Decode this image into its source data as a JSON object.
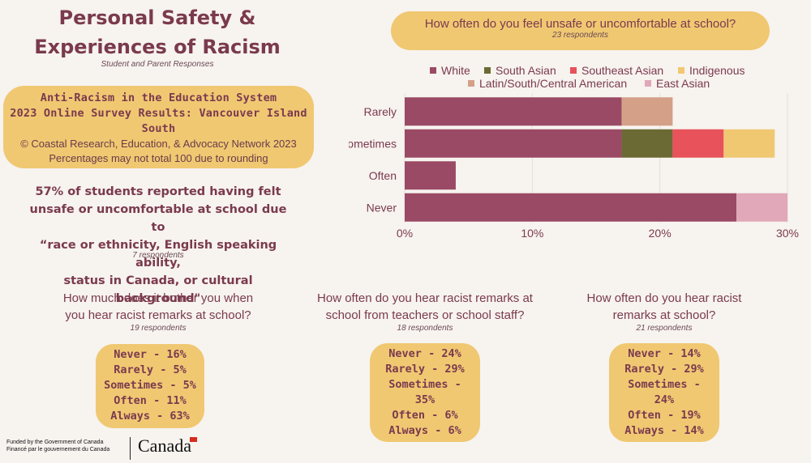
{
  "header": {
    "title_line1": "Personal Safety &",
    "title_line2": "Experiences of Racism",
    "subtitle": "Student and Parent Responses"
  },
  "survey": {
    "line1": "Anti-Racism in the Education System",
    "line2": "2023 Online Survey Results: Vancouver Island",
    "line3": "South",
    "copyright": "© Coastal Research, Education, & Advocacy Network 2023",
    "note": "Percentages may not total 100 due to rounding"
  },
  "stat": {
    "line1": "57% of students reported having felt",
    "line2": "unsafe or uncomfortable at school due to",
    "line3": "“race or ethnicity, English speaking ability,",
    "line4": "status in Canada, or cultural background\"",
    "respondents": "7 respondents"
  },
  "chart_data": {
    "type": "bar",
    "orientation": "horizontal",
    "stacked": true,
    "title": "How often do you feel unsafe or uncomfortable at school?",
    "respondents": "23 respondents",
    "categories": [
      "Rarely",
      "Sometimes",
      "Often",
      "Never"
    ],
    "series": [
      {
        "name": "White",
        "color": "#9a4a65",
        "values": [
          17,
          17,
          4,
          26
        ]
      },
      {
        "name": "South Asian",
        "color": "#6b6a35",
        "values": [
          0,
          4,
          0,
          0
        ]
      },
      {
        "name": "Southeast Asian",
        "color": "#e8525a",
        "values": [
          0,
          4,
          0,
          0
        ]
      },
      {
        "name": "Indigenous",
        "color": "#f0c872",
        "values": [
          0,
          4,
          0,
          0
        ]
      },
      {
        "name": "Latin/South/Central American",
        "color": "#d4a088",
        "values": [
          4,
          0,
          0,
          0
        ]
      },
      {
        "name": "East Asian",
        "color": "#e0a8b8",
        "values": [
          0,
          0,
          0,
          4
        ]
      }
    ],
    "xlim": [
      0,
      30
    ],
    "xticks": [
      "0%",
      "10%",
      "20%",
      "30%"
    ],
    "xtick_values": [
      0,
      10,
      20,
      30
    ],
    "grid": true,
    "legend": "top"
  },
  "questions": [
    {
      "line1": "How much does it bother you when",
      "line2": "you hear racist remarks at school?",
      "respondents": "19 respondents",
      "results": [
        "Never - 16%",
        "Rarely - 5%",
        "Sometimes - 5%",
        "Often - 11%",
        "Always - 63%"
      ]
    },
    {
      "line1": "How often do you hear racist remarks at",
      "line2": "school from teachers or school staff?",
      "respondents": "18 respondents",
      "results": [
        "Never - 24%",
        "Rarely - 29%",
        "Sometimes -",
        "35%",
        "Often - 6%",
        "Always - 6%"
      ]
    },
    {
      "line1": "How often do you hear racist",
      "line2": "remarks at school?",
      "respondents": "21 respondents",
      "results": [
        "Never - 14%",
        "Rarely - 29%",
        "Sometimes -",
        "24%",
        "Often - 19%",
        "Always - 14%"
      ]
    }
  ],
  "footer": {
    "funder_en": "Funded by the Government of Canada",
    "funder_fr": "Financé par le gouvernement du Canada",
    "wordmark": "Canada"
  }
}
